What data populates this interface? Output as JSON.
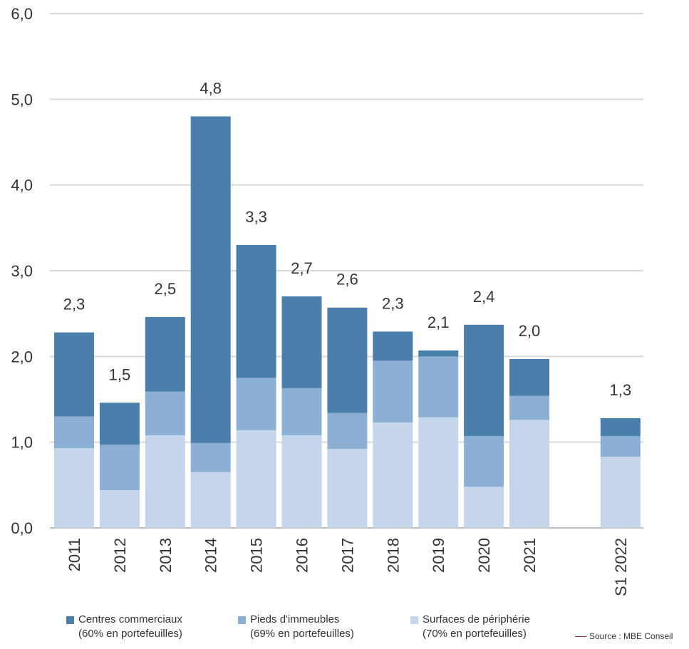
{
  "chart_data": {
    "type": "bar",
    "stacked": true,
    "categories": [
      "2011",
      "2012",
      "2013",
      "2014",
      "2015",
      "2016",
      "2017",
      "2018",
      "2019",
      "2020",
      "2021",
      "S1 2022"
    ],
    "series": [
      {
        "name": "Surfaces de périphérie",
        "note": "(70% en portefeuilles)",
        "color": "#c5d6ea",
        "values": [
          0.93,
          0.44,
          1.08,
          0.65,
          1.14,
          1.08,
          0.92,
          1.23,
          1.29,
          0.48,
          1.26,
          0.83
        ]
      },
      {
        "name": "Pieds d'immeubles",
        "note": "(69% en portefeuilles)",
        "color": "#8bb0d3",
        "values": [
          0.37,
          0.53,
          0.51,
          0.34,
          0.61,
          0.55,
          0.42,
          0.72,
          0.71,
          0.59,
          0.28,
          0.24
        ]
      },
      {
        "name": "Centres commerciaux",
        "note": "(60% en portefeuilles)",
        "color": "#4a7eab",
        "values": [
          0.98,
          0.49,
          0.87,
          3.81,
          1.55,
          1.07,
          1.23,
          0.34,
          0.07,
          1.3,
          0.43,
          0.21
        ]
      }
    ],
    "totals": [
      "2,3",
      "1,5",
      "2,5",
      "4,8",
      "3,3",
      "2,7",
      "2,6",
      "2,3",
      "2,1",
      "2,4",
      "2,0",
      "1,3"
    ],
    "ylim": [
      0,
      6
    ],
    "yticks": [
      "0,0",
      "1,0",
      "2,0",
      "3,0",
      "4,0",
      "5,0",
      "6,0"
    ],
    "grid": true,
    "legend_position": "bottom",
    "title": "",
    "xlabel": "",
    "ylabel": ""
  },
  "legend": [
    {
      "name": "Centres commerciaux",
      "note": "(60% en portefeuilles)",
      "color": "#4a7eab"
    },
    {
      "name": "Pieds d'immeubles",
      "note": "(69% en portefeuilles)",
      "color": "#8bb0d3"
    },
    {
      "name": "Surfaces de périphérie",
      "note": "(70% en portefeuilles)",
      "color": "#c5d6ea"
    }
  ],
  "source": "Source : MBE Conseil"
}
